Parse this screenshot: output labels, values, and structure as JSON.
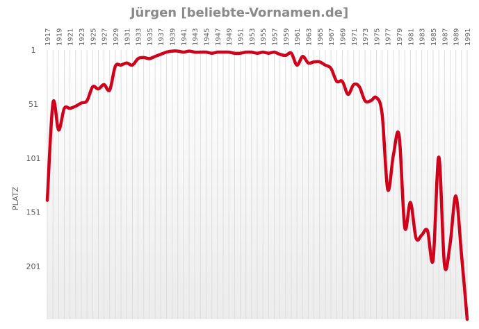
{
  "chart_data": {
    "type": "line",
    "title": "Jürgen [beliebte-Vornamen.de]",
    "xlabel": "",
    "ylabel": "PLATZ",
    "y_inverted": true,
    "xlim": [
      1917,
      1991
    ],
    "ylim": [
      1,
      250
    ],
    "x_ticks": [
      "1917",
      "1919",
      "1921",
      "1923",
      "1925",
      "1927",
      "1929",
      "1931",
      "1933",
      "1935",
      "1937",
      "1939",
      "1941",
      "1943",
      "1945",
      "1947",
      "1949",
      "1951",
      "1953",
      "1955",
      "1957",
      "1959",
      "1961",
      "1963",
      "1965",
      "1967",
      "1969",
      "1971",
      "1973",
      "1975",
      "1977",
      "1979",
      "1981",
      "1983",
      "1985",
      "1987",
      "1989",
      "1991"
    ],
    "y_ticks": [
      "1",
      "51",
      "101",
      "151",
      "201"
    ],
    "grid": "vertical",
    "series": [
      {
        "color": "#d0021b",
        "x": [
          1917,
          1918,
          1919,
          1920,
          1921,
          1922,
          1923,
          1924,
          1925,
          1926,
          1927,
          1928,
          1929,
          1930,
          1931,
          1932,
          1933,
          1934,
          1935,
          1936,
          1937,
          1938,
          1939,
          1940,
          1941,
          1942,
          1943,
          1944,
          1945,
          1946,
          1947,
          1948,
          1949,
          1950,
          1951,
          1952,
          1953,
          1954,
          1955,
          1956,
          1957,
          1958,
          1959,
          1960,
          1961,
          1962,
          1963,
          1964,
          1965,
          1966,
          1967,
          1968,
          1969,
          1970,
          1971,
          1972,
          1973,
          1974,
          1975,
          1976,
          1977,
          1978,
          1979,
          1980,
          1981,
          1982,
          1983,
          1984,
          1985,
          1986,
          1987,
          1988,
          1989,
          1990,
          1991
        ],
        "values": [
          140,
          50,
          75,
          55,
          55,
          53,
          50,
          48,
          35,
          37,
          33,
          38,
          16,
          15,
          13,
          15,
          9,
          8,
          9,
          7,
          5,
          3,
          2,
          2,
          3,
          2,
          3,
          3,
          3,
          4,
          3,
          3,
          3,
          4,
          4,
          3,
          3,
          4,
          3,
          4,
          3,
          5,
          6,
          4,
          15,
          7,
          13,
          12,
          12,
          15,
          18,
          30,
          30,
          42,
          33,
          35,
          48,
          48,
          45,
          60,
          130,
          98,
          80,
          165,
          142,
          175,
          172,
          168,
          195,
          100,
          200,
          180,
          136,
          190,
          250
        ]
      }
    ]
  }
}
